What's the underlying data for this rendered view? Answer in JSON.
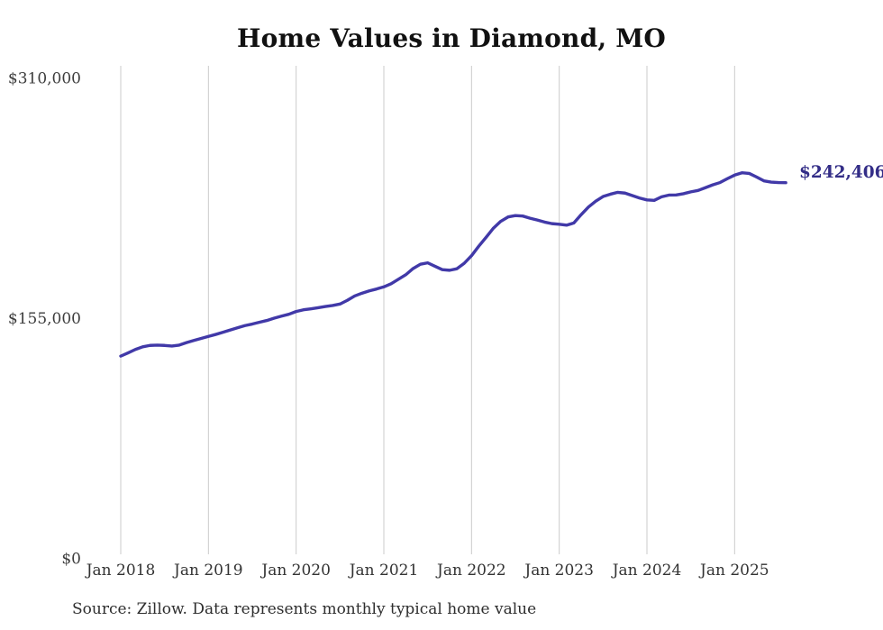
{
  "chart_data": {
    "type": "line",
    "title": "Home Values in Diamond, MO",
    "xlabel": "",
    "ylabel": "",
    "ylim": [
      0,
      310000
    ],
    "grid": "vertical-only",
    "legend": "none",
    "x_frequency": "monthly",
    "x_start": "Jan 2018",
    "x_end": "Aug 2025",
    "x_tick_labels": [
      "Jan 2018",
      "Jan 2019",
      "Jan 2020",
      "Jan 2021",
      "Jan 2022",
      "Jan 2023",
      "Jan 2024",
      "Jan 2025"
    ],
    "y_ticks": [
      {
        "label": "$0",
        "value": 0
      },
      {
        "label": "$155,000",
        "value": 155000
      },
      {
        "label": "$310,000",
        "value": 310000
      }
    ],
    "series": [
      {
        "name": "Monthly typical home value",
        "months": [
          "Jan 2018",
          "Feb 2018",
          "Mar 2018",
          "Apr 2018",
          "May 2018",
          "Jun 2018",
          "Jul 2018",
          "Aug 2018",
          "Sep 2018",
          "Oct 2018",
          "Nov 2018",
          "Dec 2018",
          "Jan 2019",
          "Feb 2019",
          "Mar 2019",
          "Apr 2019",
          "May 2019",
          "Jun 2019",
          "Jul 2019",
          "Aug 2019",
          "Sep 2019",
          "Oct 2019",
          "Nov 2019",
          "Dec 2019",
          "Jan 2020",
          "Feb 2020",
          "Mar 2020",
          "Apr 2020",
          "May 2020",
          "Jun 2020",
          "Jul 2020",
          "Aug 2020",
          "Sep 2020",
          "Oct 2020",
          "Nov 2020",
          "Dec 2020",
          "Jan 2021",
          "Feb 2021",
          "Mar 2021",
          "Apr 2021",
          "May 2021",
          "Jun 2021",
          "Jul 2021",
          "Aug 2021",
          "Sep 2021",
          "Oct 2021",
          "Nov 2021",
          "Dec 2021",
          "Jan 2022",
          "Feb 2022",
          "Mar 2022",
          "Apr 2022",
          "May 2022",
          "Jun 2022",
          "Jul 2022",
          "Aug 2022",
          "Sep 2022",
          "Oct 2022",
          "Nov 2022",
          "Dec 2022",
          "Jan 2023",
          "Feb 2023",
          "Mar 2023",
          "Apr 2023",
          "May 2023",
          "Jun 2023",
          "Jul 2023",
          "Aug 2023",
          "Sep 2023",
          "Oct 2023",
          "Nov 2023",
          "Dec 2023",
          "Jan 2024",
          "Feb 2024",
          "Mar 2024",
          "Apr 2024",
          "May 2024",
          "Jun 2024",
          "Jul 2024",
          "Aug 2024",
          "Sep 2024",
          "Oct 2024",
          "Nov 2024",
          "Dec 2024",
          "Jan 2025",
          "Feb 2025",
          "Mar 2025",
          "Apr 2025",
          "May 2025",
          "Jun 2025",
          "Jul 2025",
          "Aug 2025"
        ],
        "values": [
          130500,
          132600,
          134800,
          136500,
          137400,
          137600,
          137400,
          137000,
          137600,
          139200,
          140600,
          141900,
          143200,
          144500,
          145900,
          147400,
          148800,
          150200,
          151200,
          152400,
          153500,
          155000,
          156300,
          157500,
          159300,
          160400,
          161000,
          161700,
          162500,
          163200,
          164100,
          166500,
          169300,
          171100,
          172600,
          173800,
          175200,
          177200,
          180100,
          183000,
          187000,
          189800,
          190700,
          188500,
          186300,
          185900,
          186900,
          190400,
          195300,
          201500,
          207200,
          213100,
          217500,
          220300,
          221200,
          220900,
          219500,
          218300,
          217000,
          216000,
          215600,
          215000,
          216400,
          221800,
          226700,
          230500,
          233500,
          235000,
          236200,
          235700,
          234100,
          232500,
          231300,
          231000,
          233300,
          234400,
          234500,
          235300,
          236500,
          237400,
          239200,
          241000,
          242500,
          245000,
          247300,
          248800,
          248400,
          246100,
          243600,
          242800,
          242500,
          242406
        ]
      }
    ],
    "end_label": "$242,406",
    "end_value": 242406,
    "source_note": "Source: Zillow. Data represents monthly typical home value",
    "colors": {
      "line": "#4139A8",
      "end_label": "#332D87",
      "gridline": "#CBCBCB",
      "y_tick_label": "#3D3D3D",
      "x_tick_label": "#333333",
      "title": "#111111",
      "source": "#2E2E2E",
      "background": "#FFFFFF"
    }
  }
}
